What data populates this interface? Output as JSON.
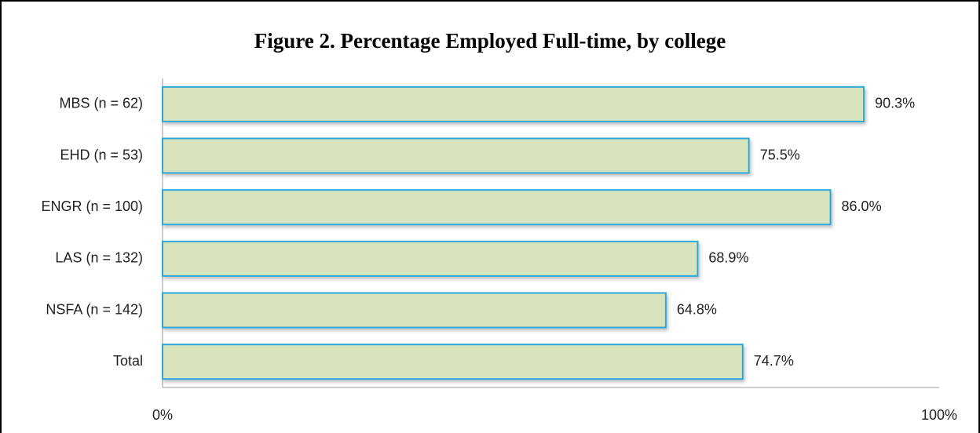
{
  "chart_data": {
    "type": "bar",
    "orientation": "horizontal",
    "title": "Figure 2.  Percentage Employed Full-time, by college",
    "categories": [
      "MBS (n = 62)",
      "EHD (n = 53)",
      "ENGR (n = 100)",
      "LAS (n = 132)",
      "NSFA (n = 142)",
      "Total"
    ],
    "values": [
      90.3,
      75.5,
      86,
      68.9,
      64.8,
      74.7
    ],
    "value_labels": [
      "90.3%",
      "75.5%",
      "86.0%",
      "68.9%",
      "64.8%",
      "74.7%"
    ],
    "color": "#d7e4bd",
    "edge_color": "#2ea7dc",
    "xlim": [
      0,
      100
    ],
    "xticks": [
      {
        "value": 0,
        "label": "0%"
      },
      {
        "value": 100,
        "label": "100%"
      }
    ],
    "grid": false
  }
}
